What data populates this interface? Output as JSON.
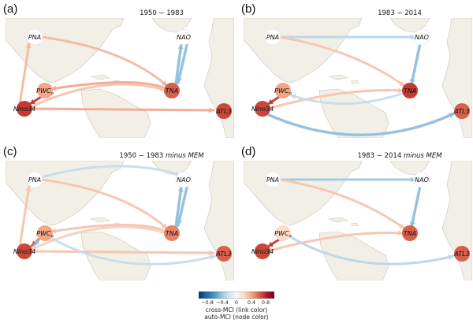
{
  "panels": [
    {
      "letter": "(a)",
      "title": "1950 − 1983",
      "title_suffix": ""
    },
    {
      "letter": "(b)",
      "title": "1983 − 2014",
      "title_suffix": ""
    },
    {
      "letter": "(c)",
      "title": "1950 − 1983 ",
      "title_suffix": "minus MEM"
    },
    {
      "letter": "(d)",
      "title": "1983 − 2014 ",
      "title_suffix": "minus MEM"
    }
  ],
  "node_labels": {
    "pna": "PNA",
    "nao": "NAO",
    "pwc": "PWC",
    "pwc_sub": "o",
    "tna": "TNA",
    "nino": "Nino34",
    "atl3": "ATL3"
  },
  "colorbar": {
    "ticks": [
      "−0.8",
      "−0.4",
      "0",
      "0.4",
      "0.8"
    ],
    "label_link": "cross-MCI (link color)",
    "label_node": "auto-MCI (node color)",
    "colors": [
      "#053061",
      "#2166ac",
      "#4393c3",
      "#92c5de",
      "#d1e5f0",
      "#f7f7f7",
      "#fddbc7",
      "#f4a582",
      "#d6604d",
      "#b2182b",
      "#67001f"
    ]
  },
  "colors": {
    "ocean": "#ffffff",
    "land": "#f2f0e6",
    "land_edge": "#c8c4b8"
  }
}
